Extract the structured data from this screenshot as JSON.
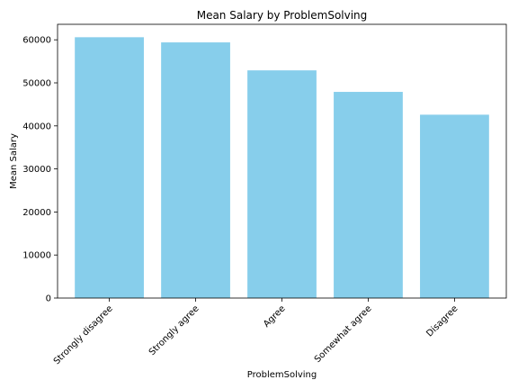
{
  "chart_data": {
    "type": "bar",
    "title": "Mean Salary by ProblemSolving",
    "xlabel": "ProblemSolving",
    "ylabel": "Mean Salary",
    "categories": [
      "Strongly disagree",
      "Strongly agree",
      "Agree",
      "Somewhat agree",
      "Disagree"
    ],
    "values": [
      60600,
      59400,
      52900,
      47900,
      42600
    ],
    "ylim": [
      0,
      63600
    ],
    "yticks": [
      0,
      10000,
      20000,
      30000,
      40000,
      50000,
      60000
    ],
    "bar_color": "#87ceeb",
    "grid": false,
    "legend": "none"
  }
}
